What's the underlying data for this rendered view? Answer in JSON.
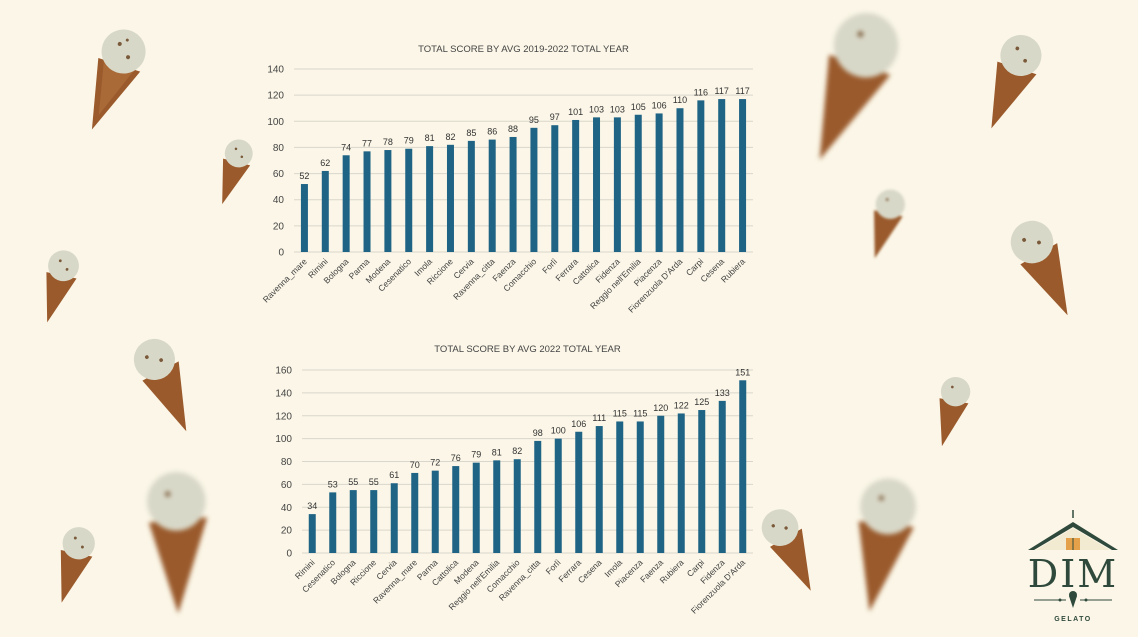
{
  "chart_data": [
    {
      "type": "bar",
      "title": "TOTAL SCORE BY AVG 2019-2022 TOTAL YEAR",
      "categories": [
        "Ravenna_mare",
        "Rimini",
        "Bologna",
        "Parma",
        "Modena",
        "Cesenatico",
        "Imola",
        "Riccione",
        "Cervia",
        "Ravenna_citta",
        "Faenza",
        "Comacchio",
        "Forlì",
        "Ferrara",
        "Cattolica",
        "Fidenza",
        "Reggio nell'Emilia",
        "Piacenza",
        "Fiorenzuola D'Arda",
        "Carpi",
        "Cesena",
        "Rubiera"
      ],
      "values": [
        52,
        62,
        74,
        77,
        78,
        79,
        81,
        82,
        85,
        86,
        88,
        95,
        97,
        101,
        103,
        103,
        105,
        106,
        110,
        116,
        117,
        117
      ],
      "ylim": [
        0,
        140
      ],
      "yticks": [
        0,
        20,
        40,
        60,
        80,
        100,
        120,
        140
      ],
      "xlabel": "",
      "ylabel": "",
      "grid": true,
      "bar_color": "#1f6485"
    },
    {
      "type": "bar",
      "title": "TOTAL SCORE BY AVG 2022 TOTAL YEAR",
      "categories": [
        "Rimini",
        "Cesenatico",
        "Bologna",
        "Riccione",
        "Cervia",
        "Ravenna_mare",
        "Parma",
        "Cattolica",
        "Modena",
        "Reggio nell'Emilia",
        "Comacchio",
        "Ravenna_citta",
        "Forlì",
        "Ferrara",
        "Cesena",
        "Imola",
        "Piacenza",
        "Faenza",
        "Rubiera",
        "Carpi",
        "Fidenza",
        "Fiorenzuola D'Arda"
      ],
      "values": [
        34,
        53,
        55,
        55,
        61,
        70,
        72,
        76,
        79,
        81,
        82,
        98,
        100,
        106,
        111,
        115,
        115,
        120,
        122,
        125,
        133,
        151
      ],
      "ylim": [
        0,
        160
      ],
      "yticks": [
        0,
        20,
        40,
        60,
        80,
        100,
        120,
        140,
        160
      ],
      "xlabel": "",
      "ylabel": "",
      "grid": true,
      "bar_color": "#1f6485"
    }
  ],
  "logo": {
    "name": "DIM",
    "sub": "GELATO",
    "color": "#2f4a3c"
  }
}
